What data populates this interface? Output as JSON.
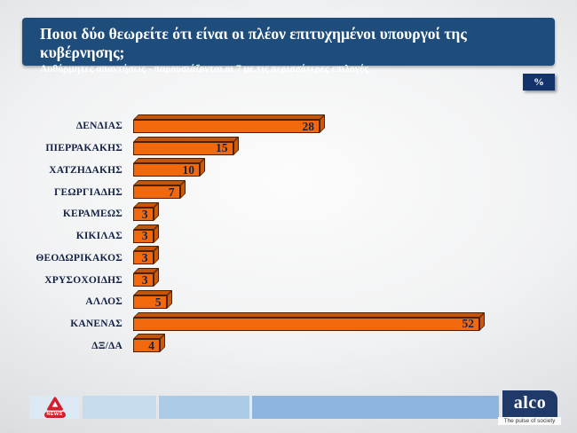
{
  "title": {
    "heading": "Ποιοι δύο θεωρείτε ότι είναι οι πλέον επιτυχημένοι υπουργοί της κυβέρνησης;",
    "subtitle": "Αυθόρμητες απαντήσεις - παρουσιάζονται οι 7 με τις περισσότερες επιλογές"
  },
  "unit_badge": "%",
  "chart_data": {
    "type": "bar",
    "orientation": "horizontal",
    "title": "Ποιοι δύο θεωρείτε ότι είναι οι πλέον επιτυχημένοι υπουργοί της κυβέρνησης;",
    "unit": "%",
    "categories": [
      "ΔΕΝΔΙΑΣ",
      "ΠΙΕΡΡΑΚΑΚΗΣ",
      "ΧΑΤΖΗΔΑΚΗΣ",
      "ΓΕΩΡΓΙΑΔΗΣ",
      "ΚΕΡΑΜΕΩΣ",
      "ΚΙΚΙΛΑΣ",
      "ΘΕΟΔΩΡΙΚΑΚΟΣ",
      "ΧΡΥΣΟΧΟΙΔΗΣ",
      "ΑΛΛΟΣ",
      "ΚΑΝΕΝΑΣ",
      "ΔΞ/ΔΑ"
    ],
    "values": [
      28,
      15,
      10,
      7,
      3,
      3,
      3,
      3,
      5,
      52,
      4
    ],
    "xlim": [
      0,
      55
    ],
    "grid": false,
    "legend": false,
    "bar_color": "#f2690d",
    "bar_top_color": "#c4560b",
    "bar_side_color": "#cd5a0a",
    "bar_border_color": "#4a2102",
    "value_label_color": "#14224d",
    "category_label_color": "#132144"
  },
  "footer": {
    "alpha_news_label": "NEWS",
    "alco_label": "alco",
    "alco_tagline": "The pulse of society"
  },
  "colors": {
    "title_bg": "#1e4d7c",
    "badge_bg": "#15336b",
    "band_segments": [
      "#dce9f5",
      "#c6dbee",
      "#abcbe6",
      "#8cb6dd"
    ],
    "alco_bg": "#1f3a68",
    "alpha_red": "#d21f2c"
  }
}
